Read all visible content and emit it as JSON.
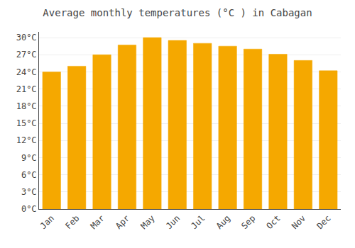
{
  "chart_data": {
    "type": "bar",
    "title": "Average monthly temperatures (°C ) in Cabagan",
    "categories": [
      "Jan",
      "Feb",
      "Mar",
      "Apr",
      "May",
      "Jun",
      "Jul",
      "Aug",
      "Sep",
      "Oct",
      "Nov",
      "Dec"
    ],
    "values": [
      24.0,
      25.0,
      27.0,
      28.7,
      30.0,
      29.5,
      29.0,
      28.5,
      28.0,
      27.1,
      26.0,
      24.2
    ],
    "color": "#F5A800",
    "ylim": [
      0,
      31
    ],
    "yticks": [
      {
        "value": 0,
        "label": "0°C"
      },
      {
        "value": 3,
        "label": "3°C"
      },
      {
        "value": 6,
        "label": "6°C"
      },
      {
        "value": 9,
        "label": "9°C"
      },
      {
        "value": 12,
        "label": "12°C"
      },
      {
        "value": 15,
        "label": "15°C"
      },
      {
        "value": 18,
        "label": "18°C"
      },
      {
        "value": 21,
        "label": "21°C"
      },
      {
        "value": 24,
        "label": "24°C"
      },
      {
        "value": 27,
        "label": "27°C"
      },
      {
        "value": 30,
        "label": "30°C"
      }
    ],
    "grid": true
  }
}
